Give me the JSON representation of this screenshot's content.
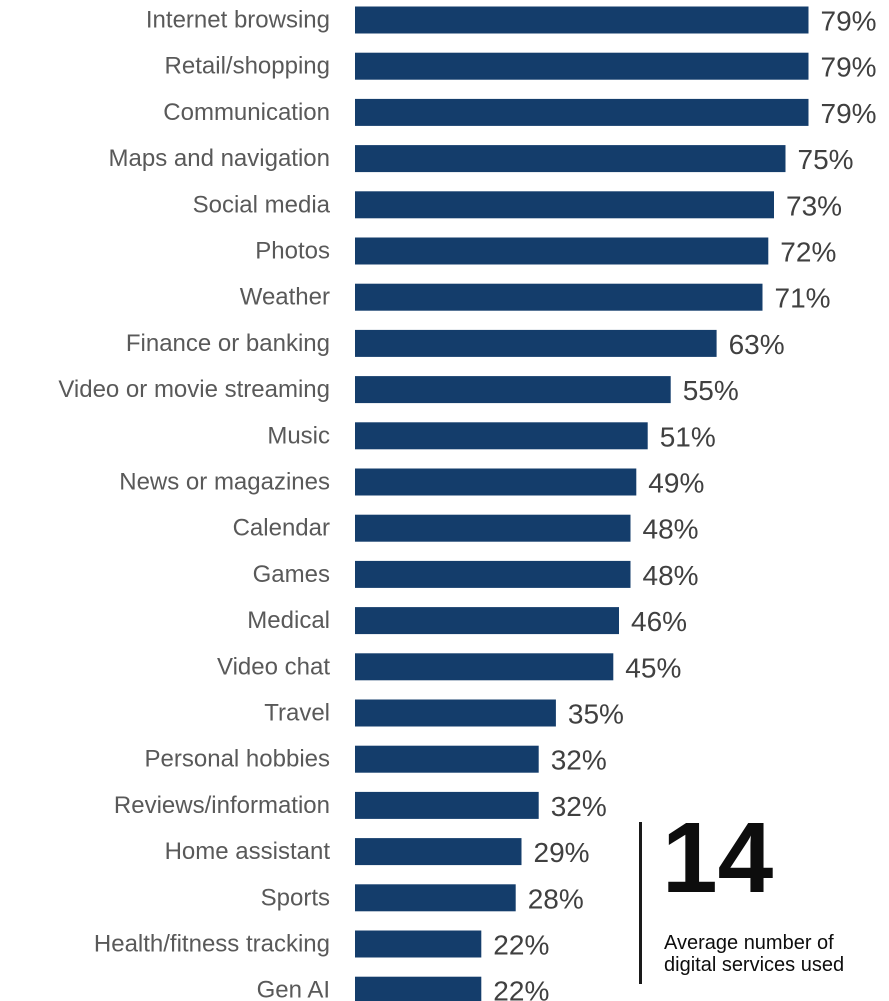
{
  "chart_data": {
    "type": "bar",
    "orientation": "horizontal",
    "categories": [
      "Internet browsing",
      "Retail/shopping",
      "Communication",
      "Maps and navigation",
      "Social media",
      "Photos",
      "Weather",
      "Finance or banking",
      "Video or movie streaming",
      "Music",
      "News or magazines",
      "Calendar",
      "Games",
      "Medical",
      "Video chat",
      "Travel",
      "Personal hobbies",
      "Reviews/information",
      "Home assistant",
      "Sports",
      "Health/fitness tracking",
      "Gen AI"
    ],
    "values": [
      79,
      79,
      79,
      75,
      73,
      72,
      71,
      63,
      55,
      51,
      49,
      48,
      48,
      46,
      45,
      35,
      32,
      32,
      29,
      28,
      22,
      22
    ],
    "value_labels": [
      "79%",
      "79%",
      "79%",
      "75%",
      "73%",
      "72%",
      "71%",
      "63%",
      "55%",
      "51%",
      "49%",
      "48%",
      "48%",
      "46%",
      "45%",
      "35%",
      "32%",
      "32%",
      "29%",
      "28%",
      "22%",
      "22%"
    ],
    "unit": "%",
    "bar_color": "#143d6b",
    "grid": false,
    "legend": "none"
  },
  "callout": {
    "number": "14",
    "text_line1": "Average number of",
    "text_line2": "digital services used"
  }
}
